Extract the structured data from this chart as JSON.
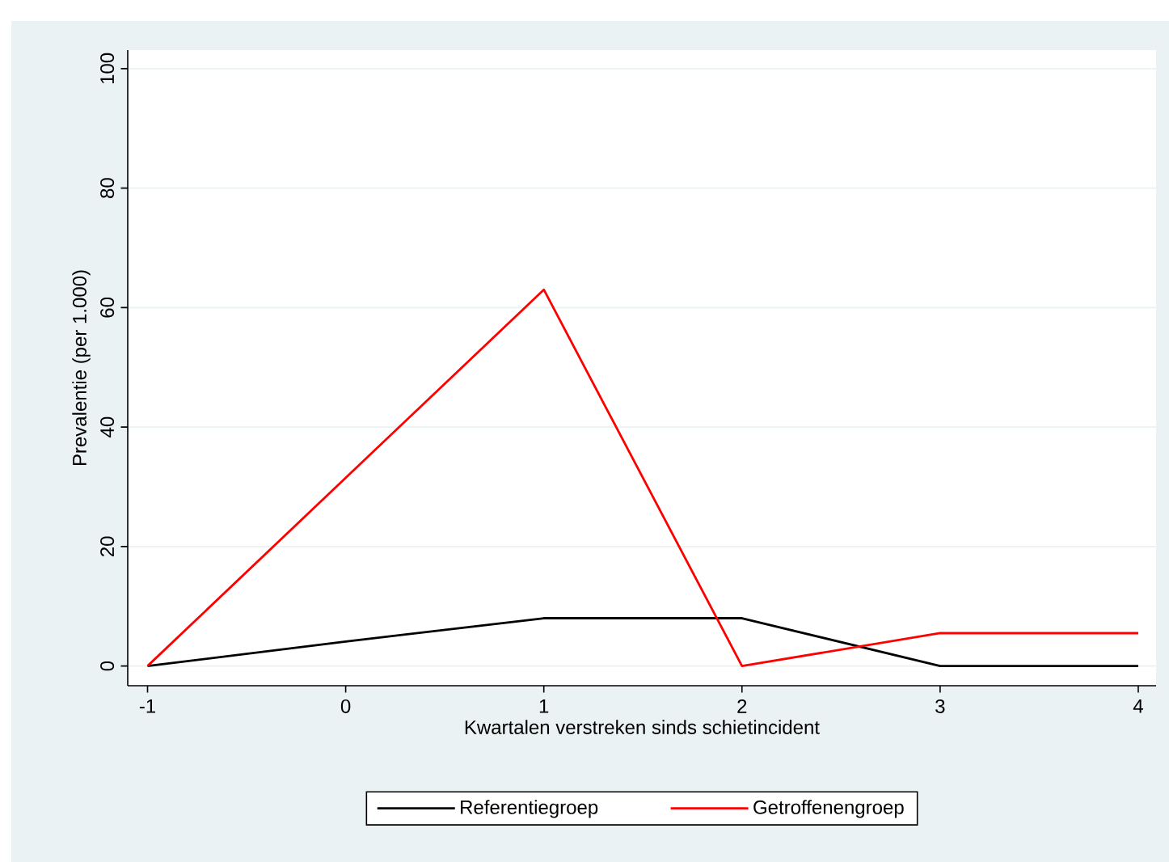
{
  "chart_data": {
    "type": "line",
    "xlabel": "Kwartalen verstreken sinds schietincident",
    "ylabel": "Prevalentie (per 1.000)",
    "x": [
      -1,
      0,
      1,
      2,
      3,
      4
    ],
    "series": [
      {
        "name": "Referentiegroep",
        "color": "#000000",
        "values": [
          0,
          4.1,
          8.0,
          8.0,
          0,
          0
        ]
      },
      {
        "name": "Getroffenengroep",
        "color": "#ff0000",
        "values": [
          0,
          31.5,
          63,
          0,
          5.5,
          5.5
        ]
      }
    ],
    "xlim": [
      -1.1,
      4.09
    ],
    "ylim": [
      -3.3,
      103.1
    ],
    "xticks": [
      -1,
      0,
      1,
      2,
      3,
      4
    ],
    "yticks": [
      0,
      20,
      40,
      60,
      80,
      100
    ],
    "grid": "y",
    "legend": "bottom"
  }
}
